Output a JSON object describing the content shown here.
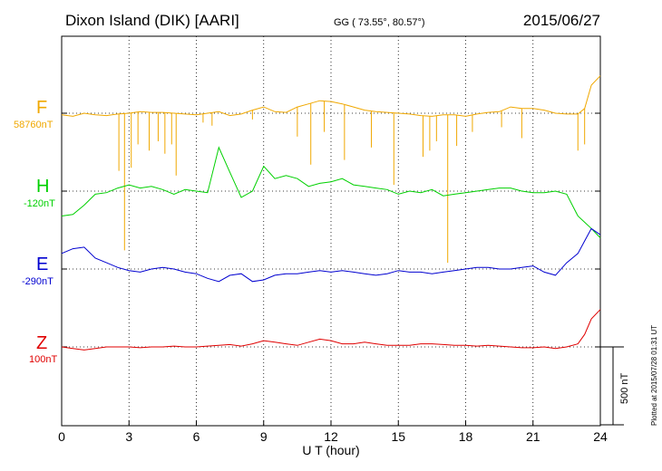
{
  "header": {
    "station": "Dixon Island (DIK)  [AARI]",
    "coords": "GG ( 73.55°,  80.57°)",
    "date": "2015/06/27"
  },
  "xaxis": {
    "label": "U T (hour)",
    "ticks": [
      "0",
      "3",
      "6",
      "9",
      "12",
      "15",
      "18",
      "21",
      "24"
    ]
  },
  "scale_label": "500 nT",
  "footer_note": "Plotted at 2015/07/28 01:31  UT",
  "channels": [
    {
      "name": "F",
      "baseline": "58760nT",
      "color": "#f0a800"
    },
    {
      "name": "H",
      "baseline": "-120nT",
      "color": "#00d000"
    },
    {
      "name": "E",
      "baseline": "-290nT",
      "color": "#0000d0"
    },
    {
      "name": "Z",
      "baseline": "100nT",
      "color": "#e00000"
    }
  ],
  "chart_data": {
    "type": "line",
    "title": "Dixon Island (DIK)  [AARI]",
    "subtitle": "GG ( 73.55°,  80.57°)",
    "date": "2015/06/27",
    "xlabel": "U T (hour)",
    "xlim": [
      0,
      24
    ],
    "xticks": [
      0,
      3,
      6,
      9,
      12,
      15,
      18,
      21,
      24
    ],
    "scale_bar_nT": 500,
    "grid": true,
    "series": [
      {
        "name": "F",
        "baseline_nT": 58760,
        "color": "#f0a800",
        "x": [
          0,
          0.5,
          1,
          1.5,
          2,
          2.5,
          3,
          3.5,
          4,
          4.5,
          5,
          5.5,
          6,
          6.5,
          7,
          7.5,
          8,
          8.5,
          9,
          9.5,
          10,
          10.5,
          11,
          11.5,
          12,
          12.5,
          13,
          13.5,
          14,
          14.5,
          15,
          15.5,
          16,
          16.5,
          17,
          17.5,
          18,
          18.5,
          19,
          19.5,
          20,
          20.5,
          21,
          21.5,
          22,
          22.5,
          23,
          23.3,
          23.6,
          24
        ],
        "values": [
          -10,
          -20,
          0,
          -10,
          -15,
          -5,
          0,
          10,
          5,
          5,
          0,
          -5,
          -10,
          0,
          10,
          -15,
          -5,
          20,
          40,
          10,
          5,
          40,
          60,
          80,
          75,
          60,
          40,
          20,
          10,
          5,
          0,
          -5,
          -15,
          -20,
          -10,
          -10,
          -20,
          -5,
          5,
          10,
          40,
          30,
          30,
          20,
          0,
          -5,
          -5,
          30,
          180,
          240
        ],
        "spikes": [
          {
            "x": 2.55,
            "value": -370
          },
          {
            "x": 2.8,
            "value": -880
          },
          {
            "x": 3.1,
            "value": -350
          },
          {
            "x": 3.4,
            "value": -200
          },
          {
            "x": 3.9,
            "value": -240
          },
          {
            "x": 4.3,
            "value": -180
          },
          {
            "x": 4.6,
            "value": -260
          },
          {
            "x": 4.9,
            "value": -200
          },
          {
            "x": 5.1,
            "value": -400
          },
          {
            "x": 6.3,
            "value": -60
          },
          {
            "x": 6.7,
            "value": -80
          },
          {
            "x": 8.5,
            "value": -40
          },
          {
            "x": 10.5,
            "value": -150
          },
          {
            "x": 11.1,
            "value": -330
          },
          {
            "x": 11.7,
            "value": -120
          },
          {
            "x": 12.6,
            "value": -300
          },
          {
            "x": 13.8,
            "value": -220
          },
          {
            "x": 14.8,
            "value": -460
          },
          {
            "x": 16.1,
            "value": -280
          },
          {
            "x": 16.4,
            "value": -240
          },
          {
            "x": 16.7,
            "value": -180
          },
          {
            "x": 17.2,
            "value": -960
          },
          {
            "x": 17.6,
            "value": -210
          },
          {
            "x": 18.3,
            "value": -120
          },
          {
            "x": 19.6,
            "value": -90
          },
          {
            "x": 20.5,
            "value": -160
          },
          {
            "x": 23.0,
            "value": -240
          },
          {
            "x": 23.3,
            "value": -200
          }
        ]
      },
      {
        "name": "H",
        "baseline_nT": -120,
        "color": "#00d000",
        "x": [
          0,
          0.5,
          1,
          1.5,
          2,
          2.5,
          3,
          3.5,
          4,
          4.5,
          5,
          5.5,
          6,
          6.5,
          7,
          7.5,
          8,
          8.5,
          9,
          9.5,
          10,
          10.5,
          11,
          11.5,
          12,
          12.5,
          13,
          13.5,
          14,
          14.5,
          15,
          15.5,
          16,
          16.5,
          17,
          17.5,
          18,
          18.5,
          19,
          19.5,
          20,
          20.5,
          21,
          21.5,
          22,
          22.5,
          23,
          23.3,
          23.6,
          24
        ],
        "values": [
          -160,
          -150,
          -90,
          -20,
          -10,
          20,
          40,
          20,
          30,
          10,
          -20,
          10,
          0,
          -10,
          280,
          120,
          -40,
          0,
          160,
          80,
          100,
          80,
          30,
          50,
          60,
          80,
          40,
          30,
          20,
          10,
          -20,
          0,
          -10,
          10,
          -30,
          -20,
          -10,
          0,
          10,
          20,
          20,
          0,
          -10,
          -10,
          0,
          -20,
          -160,
          -200,
          -240,
          -300
        ]
      },
      {
        "name": "E",
        "baseline_nT": -290,
        "color": "#0000d0",
        "x": [
          0,
          0.5,
          1,
          1.5,
          2,
          2.5,
          3,
          3.5,
          4,
          4.5,
          5,
          5.5,
          6,
          6.5,
          7,
          7.5,
          8,
          8.5,
          9,
          9.5,
          10,
          10.5,
          11,
          11.5,
          12,
          12.5,
          13,
          13.5,
          14,
          14.5,
          15,
          15.5,
          16,
          16.5,
          17,
          17.5,
          18,
          18.5,
          19,
          19.5,
          20,
          20.5,
          21,
          21.5,
          22,
          22.5,
          23,
          23.3,
          23.6,
          24
        ],
        "values": [
          100,
          130,
          140,
          70,
          40,
          10,
          -10,
          -20,
          0,
          10,
          0,
          -20,
          -30,
          -60,
          -80,
          -40,
          -30,
          -80,
          -70,
          -40,
          -30,
          -30,
          -20,
          -10,
          -20,
          -10,
          -20,
          -30,
          -40,
          -30,
          -10,
          -20,
          -20,
          -30,
          -20,
          -10,
          0,
          10,
          10,
          0,
          0,
          10,
          20,
          -20,
          -40,
          40,
          100,
          180,
          260,
          220
        ]
      },
      {
        "name": "Z",
        "baseline_nT": 100,
        "color": "#e00000",
        "x": [
          0,
          0.5,
          1,
          1.5,
          2,
          2.5,
          3,
          3.5,
          4,
          4.5,
          5,
          5.5,
          6,
          6.5,
          7,
          7.5,
          8,
          8.5,
          9,
          9.5,
          10,
          10.5,
          11,
          11.5,
          12,
          12.5,
          13,
          13.5,
          14,
          14.5,
          15,
          15.5,
          16,
          16.5,
          17,
          17.5,
          18,
          18.5,
          19,
          19.5,
          20,
          20.5,
          21,
          21.5,
          22,
          22.5,
          23,
          23.3,
          23.6,
          24
        ],
        "values": [
          0,
          -10,
          -20,
          -10,
          0,
          0,
          0,
          -5,
          0,
          0,
          5,
          0,
          0,
          5,
          10,
          15,
          5,
          20,
          40,
          30,
          20,
          10,
          30,
          50,
          40,
          20,
          20,
          30,
          20,
          10,
          10,
          10,
          20,
          20,
          15,
          10,
          10,
          5,
          10,
          5,
          0,
          -5,
          -5,
          0,
          -10,
          0,
          20,
          80,
          180,
          240
        ]
      }
    ]
  }
}
